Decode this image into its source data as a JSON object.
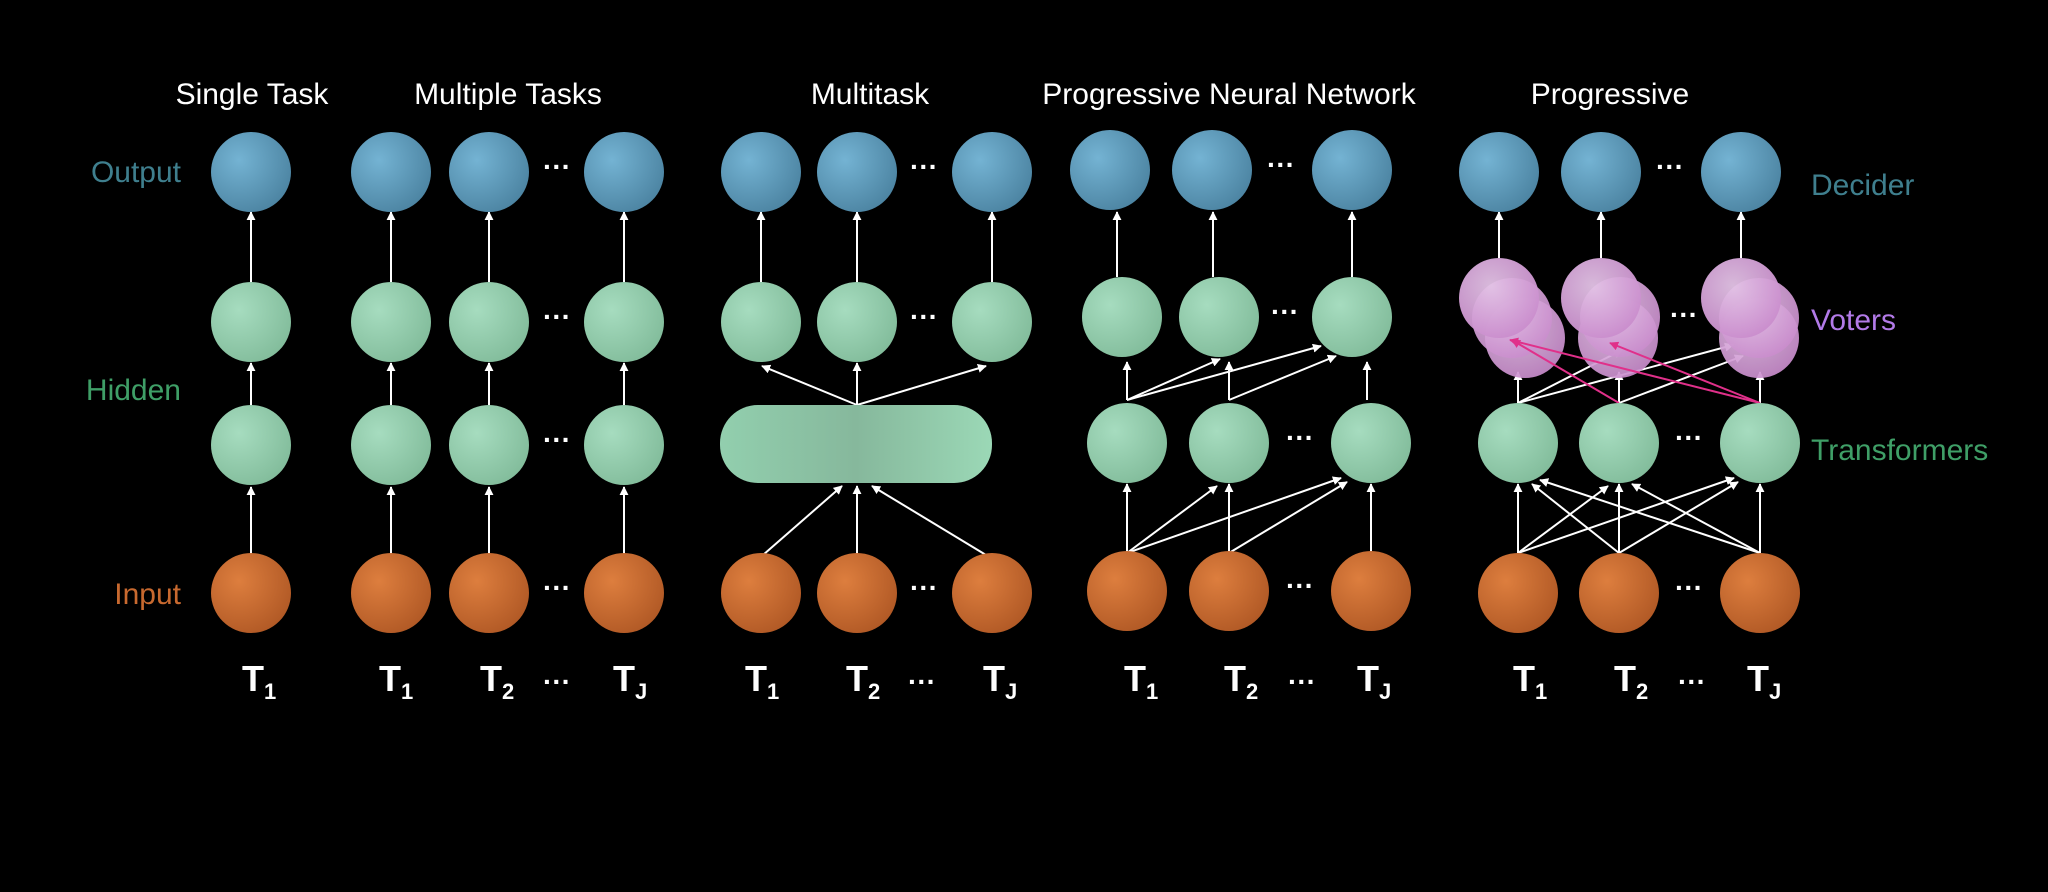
{
  "panels": [
    {
      "id": "single",
      "title": "Single Task"
    },
    {
      "id": "multiple",
      "title": "Multiple Tasks"
    },
    {
      "id": "multitask",
      "title": "Multitask"
    },
    {
      "id": "pnn",
      "title": "Progressive Neural Network"
    },
    {
      "id": "prog",
      "title": "Progressive"
    }
  ],
  "row_labels": {
    "output": "Output",
    "hidden": "Hidden",
    "input": "Input"
  },
  "side_labels": {
    "decider": "Decider",
    "voters": "Voters",
    "transformers": "Transformers"
  },
  "ellipsis": "···",
  "task_labels": {
    "prefix": "T",
    "first": "1",
    "second": "2",
    "last": "J",
    "ellipsis": "···"
  },
  "colors": {
    "background": "#000000",
    "output_node": "#5b97b6",
    "hidden_node": "#92cfae",
    "input_node": "#c8692f",
    "voter_node": "#d49ad6",
    "arrow": "#ffffff",
    "voter_arrow": "#e0308a",
    "output_label": "#3f7f8e",
    "hidden_label": "#3f9f67",
    "input_label": "#c8692f",
    "decider_label": "#3f7f8e",
    "voters_label": "#b27ae8",
    "transformers_label": "#3f9f67"
  }
}
